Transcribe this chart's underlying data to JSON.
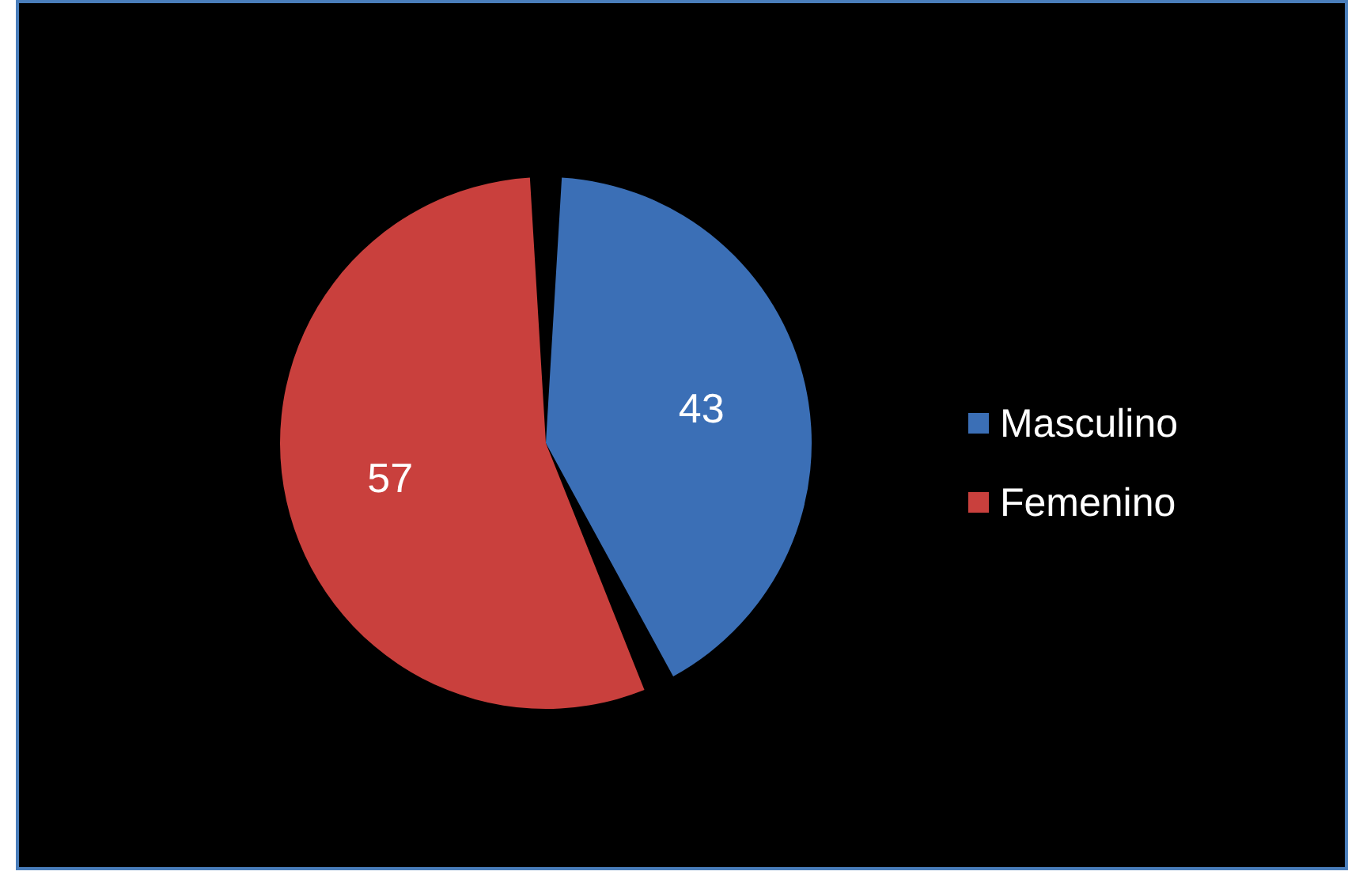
{
  "chart_data": {
    "type": "pie",
    "categories": [
      "Masculino",
      "Femenino"
    ],
    "values": [
      43,
      57
    ],
    "colors": [
      "#3b6fb6",
      "#c9403d"
    ],
    "data_labels": true,
    "legend": "right"
  }
}
